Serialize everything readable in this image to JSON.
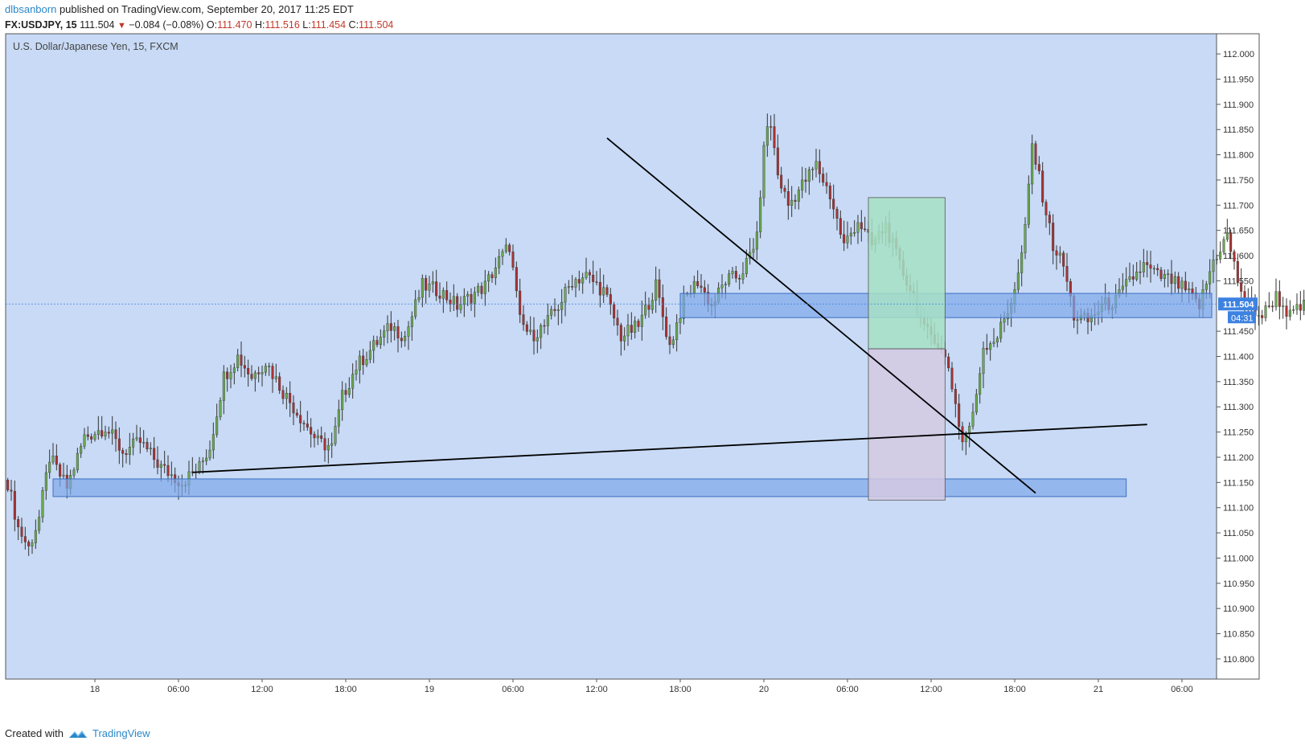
{
  "header": {
    "author": "dlbsanborn",
    "published_text": "published on TradingView.com, September 20, 2017 11:25 EDT",
    "symbol": "FX:USDJPY, 15",
    "last": "111.504",
    "change": "−0.084 (−0.08%)",
    "o_label": "O:",
    "o_value": "111.470",
    "h_label": "H:",
    "h_value": "111.516",
    "l_label": "L:",
    "l_value": "111.454",
    "c_label": "C:",
    "c_value": "111.504"
  },
  "footer": {
    "created_with": "Created with",
    "brand": "TradingView"
  },
  "chart_data": {
    "type": "candlestick",
    "title": "U.S. Dollar/Japanese Yen, 15, FXCM",
    "ylim": [
      110.76,
      112.04
    ],
    "y_ticks": [
      "112.000",
      "111.950",
      "111.900",
      "111.850",
      "111.800",
      "111.750",
      "111.700",
      "111.650",
      "111.600",
      "111.550",
      "111.450",
      "111.400",
      "111.350",
      "111.300",
      "111.250",
      "111.200",
      "111.150",
      "111.100",
      "111.050",
      "111.000",
      "110.950",
      "110.900",
      "110.850",
      "110.800"
    ],
    "x_ticks": [
      "18",
      "06:00",
      "12:00",
      "18:00",
      "19",
      "06:00",
      "12:00",
      "18:00",
      "20",
      "06:00",
      "12:00",
      "18:00",
      "21",
      "06:00"
    ],
    "current_price_label": "111.504",
    "countdown_label": "04:31",
    "colors": {
      "background": "#c8daf5",
      "up": "#6aa84f",
      "down": "#a83232",
      "wick": "#333333",
      "zone_fill": "#7ea8ea",
      "zone_border": "#3d6fc4",
      "profit_fill": "#a6e0c4",
      "loss_fill": "#d3c9e2",
      "price_tag": "#3d82e0"
    },
    "zones": [
      {
        "name": "upper-zone",
        "x1": "Sep 19 18:00",
        "x2": "end",
        "y1": 111.477,
        "y2": 111.525
      },
      {
        "name": "lower-zone",
        "x1": "Sep 17 21:00",
        "x2": "Sep 21 02:00",
        "y1": 111.122,
        "y2": 111.157
      }
    ],
    "position": {
      "entry": 111.415,
      "target": 111.715,
      "stop": 111.115,
      "x1": "Sep 20 07:30",
      "x2": "Sep 20 13:00"
    },
    "trendlines": [
      {
        "name": "descending-trendline",
        "p1": [
          "Sep 19 12:45",
          111.833
        ],
        "p2": [
          "Sep 20 19:30",
          111.129
        ]
      },
      {
        "name": "ascending-trendline",
        "p1": [
          "Sep 18 07:00",
          111.17
        ],
        "p2": [
          "Sep 21 03:30",
          111.265
        ]
      }
    ],
    "series": [
      {
        "name": "USDJPY 15m",
        "anchors": [
          [
            0,
            111.15
          ],
          [
            3,
            111.06
          ],
          [
            6,
            111.02
          ],
          [
            9,
            111.08
          ],
          [
            12,
            111.2
          ],
          [
            17,
            111.14
          ],
          [
            22,
            111.24
          ],
          [
            28,
            111.26
          ],
          [
            33,
            111.21
          ],
          [
            38,
            111.23
          ],
          [
            44,
            111.18
          ],
          [
            50,
            111.15
          ],
          [
            55,
            111.18
          ],
          [
            58,
            111.22
          ],
          [
            62,
            111.36
          ],
          [
            66,
            111.4
          ],
          [
            70,
            111.36
          ],
          [
            74,
            111.39
          ],
          [
            79,
            111.33
          ],
          [
            84,
            111.28
          ],
          [
            89,
            111.23
          ],
          [
            93,
            111.22
          ],
          [
            96,
            111.32
          ],
          [
            100,
            111.38
          ],
          [
            105,
            111.42
          ],
          [
            110,
            111.46
          ],
          [
            114,
            111.44
          ],
          [
            119,
            111.54
          ],
          [
            124,
            111.53
          ],
          [
            129,
            111.5
          ],
          [
            133,
            111.52
          ],
          [
            137,
            111.54
          ],
          [
            141,
            111.59
          ],
          [
            144,
            111.62
          ],
          [
            147,
            111.47
          ],
          [
            150,
            111.44
          ],
          [
            154,
            111.46
          ],
          [
            158,
            111.5
          ],
          [
            162,
            111.55
          ],
          [
            166,
            111.56
          ],
          [
            171,
            111.53
          ],
          [
            176,
            111.44
          ],
          [
            181,
            111.46
          ],
          [
            186,
            111.54
          ],
          [
            190,
            111.42
          ],
          [
            194,
            111.51
          ],
          [
            198,
            111.55
          ],
          [
            202,
            111.5
          ],
          [
            206,
            111.55
          ],
          [
            210,
            111.56
          ],
          [
            214,
            111.61
          ],
          [
            216,
            111.7
          ],
          [
            217,
            111.83
          ],
          [
            219,
            111.86
          ],
          [
            221,
            111.76
          ],
          [
            224,
            111.7
          ],
          [
            228,
            111.74
          ],
          [
            232,
            111.78
          ],
          [
            236,
            111.72
          ],
          [
            240,
            111.62
          ],
          [
            244,
            111.67
          ],
          [
            248,
            111.62
          ],
          [
            252,
            111.66
          ],
          [
            256,
            111.58
          ],
          [
            260,
            111.52
          ],
          [
            263,
            111.45
          ],
          [
            266,
            111.44
          ],
          [
            270,
            111.38
          ],
          [
            274,
            111.23
          ],
          [
            277,
            111.28
          ],
          [
            280,
            111.42
          ],
          [
            284,
            111.44
          ],
          [
            287,
            111.49
          ],
          [
            290,
            111.56
          ],
          [
            292,
            111.65
          ],
          [
            294,
            111.82
          ],
          [
            297,
            111.72
          ],
          [
            300,
            111.62
          ],
          [
            303,
            111.58
          ],
          [
            306,
            111.48
          ],
          [
            310,
            111.47
          ],
          [
            314,
            111.5
          ],
          [
            318,
            111.51
          ],
          [
            322,
            111.55
          ],
          [
            326,
            111.58
          ],
          [
            330,
            111.56
          ],
          [
            334,
            111.55
          ],
          [
            338,
            111.53
          ],
          [
            342,
            111.5
          ],
          [
            346,
            111.59
          ],
          [
            350,
            111.64
          ],
          [
            353,
            111.55
          ],
          [
            356,
            111.5
          ],
          [
            360,
            111.48
          ],
          [
            364,
            111.52
          ],
          [
            368,
            111.48
          ],
          [
            372,
            111.5
          ],
          [
            376,
            111.46
          ],
          [
            380,
            111.45
          ],
          [
            383,
            111.42
          ],
          [
            386,
            111.37
          ],
          [
            389,
            111.45
          ],
          [
            392,
            111.48
          ],
          [
            395,
            111.43
          ],
          [
            398,
            111.4
          ],
          [
            401,
            111.38
          ],
          [
            404,
            111.35
          ],
          [
            407,
            111.3
          ],
          [
            410,
            111.27
          ],
          [
            413,
            111.26
          ],
          [
            416,
            111.29
          ],
          [
            420,
            111.32
          ],
          [
            423,
            111.37
          ],
          [
            426,
            111.41
          ],
          [
            429,
            111.44
          ],
          [
            432,
            111.42
          ],
          [
            435,
            111.46
          ],
          [
            438,
            111.43
          ],
          [
            441,
            111.504
          ]
        ]
      }
    ]
  }
}
